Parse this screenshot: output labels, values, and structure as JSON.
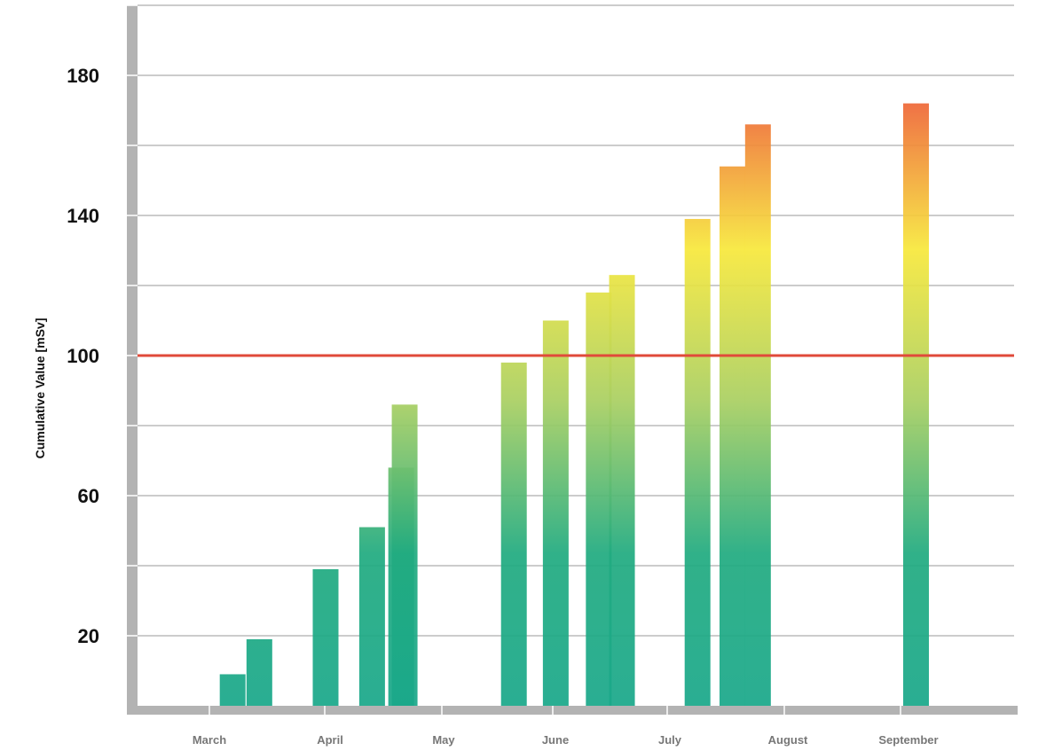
{
  "chart_data": {
    "type": "bar",
    "ylabel": "Cumulative Value [mSv]",
    "xlabel": "",
    "ylim": [
      0,
      200
    ],
    "yticks_labeled": [
      20,
      60,
      100,
      140,
      180
    ],
    "grid": true,
    "gridline_step": 20,
    "x_months": [
      "March",
      "April",
      "May",
      "June",
      "July",
      "August",
      "September"
    ],
    "bars": [
      {
        "month_pos": 0.2,
        "value": 9
      },
      {
        "month_pos": 0.43,
        "value": 19
      },
      {
        "month_pos": 1.0,
        "value": 39
      },
      {
        "month_pos": 1.4,
        "value": 51
      },
      {
        "month_pos": 1.65,
        "value": 68
      },
      {
        "month_pos": 1.68,
        "value": 86
      },
      {
        "month_pos": 2.62,
        "value": 98
      },
      {
        "month_pos": 2.98,
        "value": 110
      },
      {
        "month_pos": 3.35,
        "value": 118
      },
      {
        "month_pos": 3.55,
        "value": 123
      },
      {
        "month_pos": 4.2,
        "value": 139
      },
      {
        "month_pos": 4.5,
        "value": 154
      },
      {
        "month_pos": 4.72,
        "value": 166
      },
      {
        "month_pos": 6.08,
        "value": 172
      }
    ],
    "reference_line": {
      "value": 100,
      "color": "#e04a3a"
    },
    "colors": {
      "low": "#1aa88a",
      "mid": "#f4e840",
      "high": "#ef6a3a",
      "axis": "#b3b3b3",
      "grid": "#9a9a9a",
      "highlight_tick": "#e04a3a"
    }
  }
}
